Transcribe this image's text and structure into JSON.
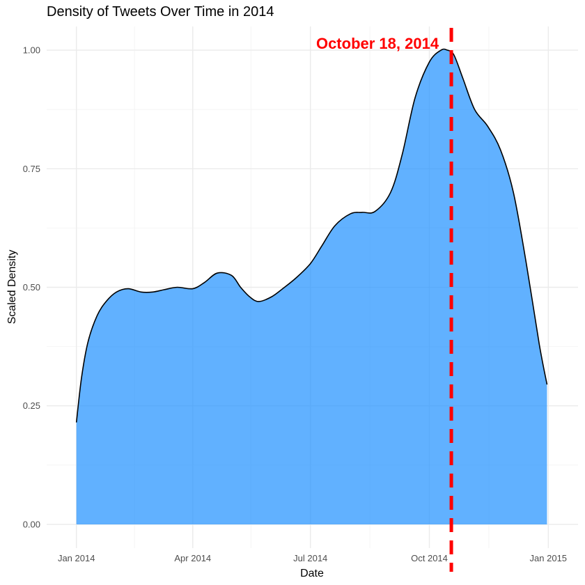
{
  "chart_data": {
    "type": "area",
    "title": "Density of Tweets Over Time in 2014",
    "xlabel": "Date",
    "ylabel": "Scaled Density",
    "xlim": [
      "2013-12-09",
      "2015-01-24"
    ],
    "ylim": [
      -0.05,
      1.05
    ],
    "x_ticks": [
      {
        "date": "2014-01-01",
        "label": "Jan 2014"
      },
      {
        "date": "2014-04-01",
        "label": "Apr 2014"
      },
      {
        "date": "2014-07-01",
        "label": "Jul 2014"
      },
      {
        "date": "2014-10-01",
        "label": "Oct 2014"
      },
      {
        "date": "2015-01-01",
        "label": "Jan 2015"
      }
    ],
    "x_minor_ticks": [
      "2014-02-15",
      "2014-05-16",
      "2014-08-16",
      "2014-11-16"
    ],
    "y_ticks": [
      {
        "value": 0.0,
        "label": "0.00"
      },
      {
        "value": 0.25,
        "label": "0.25"
      },
      {
        "value": 0.5,
        "label": "0.50"
      },
      {
        "value": 0.75,
        "label": "0.75"
      },
      {
        "value": 1.0,
        "label": "1.00"
      }
    ],
    "y_minor_ticks": [
      0.125,
      0.375,
      0.625,
      0.875
    ],
    "grid": true,
    "fill_color": "#1E90FF",
    "line_color": "#000000",
    "series": [
      {
        "x": [
          "2014-01-01",
          "2014-01-05",
          "2014-01-10",
          "2014-01-17",
          "2014-01-24",
          "2014-02-01",
          "2014-02-10",
          "2014-02-20",
          "2014-03-01",
          "2014-03-10",
          "2014-03-20",
          "2014-04-01",
          "2014-04-10",
          "2014-04-20",
          "2014-05-01",
          "2014-05-08",
          "2014-05-15",
          "2014-05-22",
          "2014-06-01",
          "2014-06-10",
          "2014-06-20",
          "2014-07-01",
          "2014-07-10",
          "2014-07-20",
          "2014-08-01",
          "2014-08-10",
          "2014-08-20",
          "2014-09-01",
          "2014-09-10",
          "2014-09-20",
          "2014-10-01",
          "2014-10-10",
          "2014-10-15",
          "2014-10-20",
          "2014-10-27",
          "2014-11-05",
          "2014-11-15",
          "2014-11-25",
          "2014-12-05",
          "2014-12-15",
          "2014-12-25",
          "2014-12-31"
        ],
        "values": [
          0.215,
          0.31,
          0.385,
          0.44,
          0.47,
          0.49,
          0.497,
          0.49,
          0.49,
          0.495,
          0.5,
          0.497,
          0.51,
          0.53,
          0.525,
          0.5,
          0.48,
          0.47,
          0.48,
          0.498,
          0.52,
          0.55,
          0.588,
          0.63,
          0.655,
          0.658,
          0.66,
          0.7,
          0.78,
          0.9,
          0.975,
          1.0,
          1.0,
          0.99,
          0.94,
          0.875,
          0.84,
          0.79,
          0.7,
          0.55,
          0.38,
          0.295
        ]
      }
    ],
    "annotations": [
      {
        "type": "vline",
        "date": "2014-10-18",
        "color": "#FF0000",
        "style": "dashed"
      },
      {
        "type": "text",
        "text": "October 18, 2014",
        "date": "2014-10-18",
        "y": 1.0,
        "color": "#FF0000",
        "weight": "bold"
      }
    ]
  }
}
